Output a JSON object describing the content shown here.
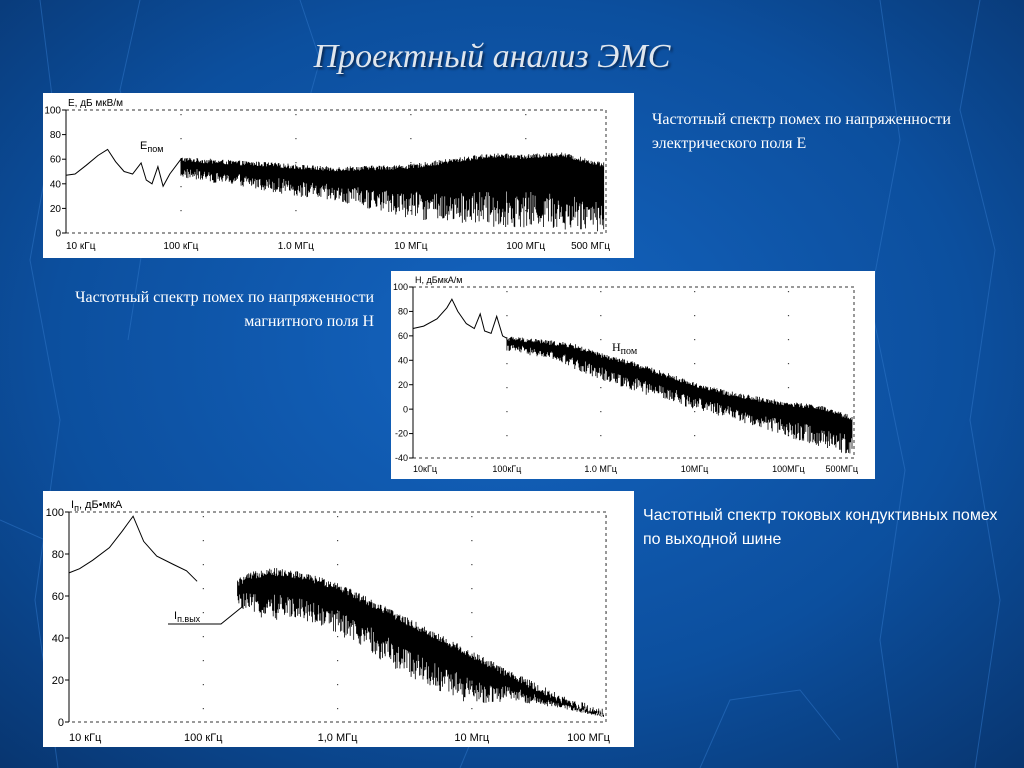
{
  "slide": {
    "title": "Проектный анализ ЭМС",
    "captions": {
      "e_field": "Частотный спектр помех по напряженности электрического поля Е",
      "h_field": "Частотный спектр помех по напряженности магнитного поля Н",
      "current": "Частотный спектр токовых кондуктивных помех по выходной шине"
    }
  },
  "chart_data": [
    {
      "type": "line",
      "ylabel": "E, дБ мкВ/м",
      "annotation": {
        "main": "E",
        "sub": "пом"
      },
      "x_scale": "log",
      "xlim": [
        10000,
        500000000
      ],
      "ylim": [
        0,
        100
      ],
      "x_ticks": [
        {
          "value": 10000,
          "label": "10 кГц"
        },
        {
          "value": 100000,
          "label": "100 кГц"
        },
        {
          "value": 1000000,
          "label": "1.0 МГц"
        },
        {
          "value": 10000000,
          "label": "10 МГц"
        },
        {
          "value": 100000000,
          "label": "100 МГц"
        },
        {
          "value": 500000000,
          "label": "500 МГц"
        }
      ],
      "y_ticks": [
        {
          "value": 0,
          "label": "0"
        },
        {
          "value": 20,
          "label": "20"
        },
        {
          "value": 40,
          "label": "40"
        },
        {
          "value": 60,
          "label": "60"
        },
        {
          "value": 80,
          "label": "80"
        },
        {
          "value": 100,
          "label": "100"
        }
      ],
      "series": [
        {
          "points": [
            [
              10000,
              47
            ],
            [
              12000,
              48
            ],
            [
              15000,
              55
            ],
            [
              19000,
              63
            ],
            [
              23000,
              68
            ],
            [
              27000,
              58
            ],
            [
              32000,
              50
            ],
            [
              38000,
              48
            ],
            [
              45000,
              57
            ],
            [
              50000,
              43
            ],
            [
              56000,
              40
            ],
            [
              63000,
              54
            ],
            [
              70000,
              38
            ],
            [
              80000,
              48
            ],
            [
              100000,
              60
            ],
            [
              200000,
              58
            ],
            [
              500000,
              56
            ],
            [
              1000000,
              54
            ],
            [
              2000000,
              52
            ],
            [
              5000000,
              53
            ],
            [
              10000000,
              54
            ],
            [
              20000000,
              58
            ],
            [
              50000000,
              63
            ],
            [
              100000000,
              62
            ],
            [
              200000000,
              64
            ],
            [
              300000000,
              60
            ],
            [
              500000000,
              55
            ]
          ],
          "floor": [
            [
              100000,
              45
            ],
            [
              500000,
              35
            ],
            [
              1000000,
              30
            ],
            [
              2000000,
              25
            ],
            [
              5000000,
              18
            ],
            [
              10000000,
              12
            ],
            [
              20000000,
              8
            ],
            [
              50000000,
              5
            ],
            [
              100000000,
              4
            ],
            [
              300000000,
              2
            ],
            [
              500000000,
              0
            ]
          ]
        }
      ]
    },
    {
      "type": "line",
      "ylabel": "Н, дБмкА/м",
      "annotation": {
        "main": "Н",
        "sub": "пом"
      },
      "x_scale": "log",
      "xlim": [
        10000,
        500000000
      ],
      "ylim": [
        -40,
        100
      ],
      "x_ticks": [
        {
          "value": 10000,
          "label": "10кГц"
        },
        {
          "value": 100000,
          "label": "100кГц"
        },
        {
          "value": 1000000,
          "label": "1.0 МГц"
        },
        {
          "value": 10000000,
          "label": "10МГц"
        },
        {
          "value": 100000000,
          "label": "100МГц"
        },
        {
          "value": 500000000,
          "label": "500МГц"
        }
      ],
      "y_ticks": [
        {
          "value": -40,
          "label": "-40"
        },
        {
          "value": -20,
          "label": "-20"
        },
        {
          "value": 0,
          "label": "0"
        },
        {
          "value": 20,
          "label": "20"
        },
        {
          "value": 40,
          "label": "40"
        },
        {
          "value": 60,
          "label": "60"
        },
        {
          "value": 80,
          "label": "80"
        },
        {
          "value": 100,
          "label": "100"
        }
      ],
      "series": [
        {
          "points": [
            [
              10000,
              66
            ],
            [
              13000,
              68
            ],
            [
              18000,
              74
            ],
            [
              23000,
              83
            ],
            [
              26000,
              90
            ],
            [
              30000,
              80
            ],
            [
              37000,
              70
            ],
            [
              45000,
              66
            ],
            [
              52000,
              78
            ],
            [
              58000,
              64
            ],
            [
              68000,
              62
            ],
            [
              78000,
              76
            ],
            [
              90000,
              60
            ],
            [
              100000,
              58
            ],
            [
              200000,
              56
            ],
            [
              500000,
              52
            ],
            [
              1000000,
              44
            ],
            [
              2000000,
              38
            ],
            [
              5000000,
              28
            ],
            [
              10000000,
              20
            ],
            [
              20000000,
              14
            ],
            [
              50000000,
              8
            ],
            [
              100000000,
              4
            ],
            [
              200000000,
              2
            ],
            [
              500000000,
              -8
            ]
          ],
          "floor": [
            [
              100000,
              48
            ],
            [
              300000,
              40
            ],
            [
              1000000,
              24
            ],
            [
              3000000,
              12
            ],
            [
              10000000,
              0
            ],
            [
              30000000,
              -10
            ],
            [
              100000000,
              -24
            ],
            [
              300000000,
              -34
            ],
            [
              500000000,
              -38
            ]
          ]
        }
      ]
    },
    {
      "type": "line",
      "ylabel": {
        "main": "I",
        "sub": "п",
        "rest": ", дБ•мкА"
      },
      "annotation": {
        "main": "I",
        "sub": "п.вых"
      },
      "x_scale": "log",
      "xlim": [
        10000,
        100000000
      ],
      "ylim": [
        0,
        100
      ],
      "x_ticks": [
        {
          "value": 10000,
          "label": "10 кГц"
        },
        {
          "value": 100000,
          "label": "100 кГц"
        },
        {
          "value": 1000000,
          "label": "1,0 МГц"
        },
        {
          "value": 10000000,
          "label": "10 Мгц"
        },
        {
          "value": 100000000,
          "label": "100 МГц"
        }
      ],
      "y_ticks": [
        {
          "value": 0,
          "label": "0"
        },
        {
          "value": 20,
          "label": "20"
        },
        {
          "value": 40,
          "label": "40"
        },
        {
          "value": 60,
          "label": "60"
        },
        {
          "value": 80,
          "label": "80"
        },
        {
          "value": 100,
          "label": "100"
        }
      ],
      "series": [
        {
          "points": [
            [
              10000,
              71
            ],
            [
              12000,
              73
            ],
            [
              15000,
              77
            ],
            [
              20000,
              83
            ],
            [
              25000,
              91
            ],
            [
              30000,
              98
            ],
            [
              36000,
              86
            ],
            [
              45000,
              79
            ],
            [
              60000,
              75
            ],
            [
              75000,
              72
            ],
            [
              90000,
              67
            ],
            [
              110000,
              66
            ],
            [
              150000,
              63
            ],
            [
              200000,
              68
            ],
            [
              300000,
              72
            ],
            [
              500000,
              70
            ],
            [
              1000000,
              65
            ],
            [
              2000000,
              55
            ],
            [
              5000000,
              42
            ],
            [
              10000000,
              32
            ],
            [
              20000000,
              22
            ],
            [
              50000000,
              10
            ],
            [
              100000000,
              4
            ]
          ],
          "floor": [
            [
              180000,
              55
            ],
            [
              300000,
              48
            ],
            [
              500000,
              50
            ],
            [
              1000000,
              42
            ],
            [
              2000000,
              30
            ],
            [
              5000000,
              16
            ],
            [
              10000000,
              8
            ],
            [
              20000000,
              10
            ],
            [
              50000000,
              6
            ],
            [
              100000000,
              2
            ]
          ]
        }
      ]
    }
  ]
}
